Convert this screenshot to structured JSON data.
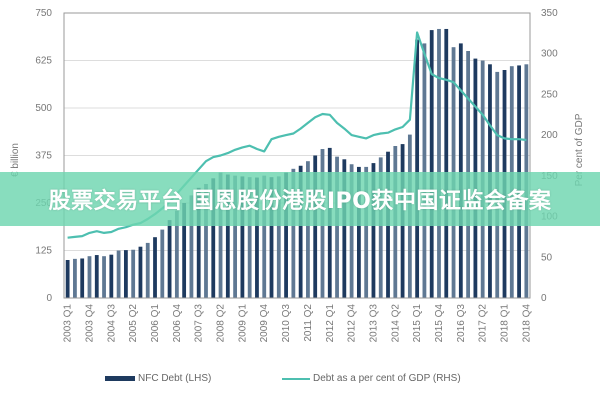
{
  "chart_data": {
    "type": "bar+line",
    "title": "",
    "ylabel_left": "€ billion",
    "ylabel_right": "Per cent of GDP",
    "ylim_left": [
      0,
      750
    ],
    "ylim_right": [
      0,
      350
    ],
    "yticks_left": [
      "0",
      "125",
      "250",
      "375",
      "500",
      "625",
      "750"
    ],
    "yticks_right": [
      "0",
      "50",
      "100",
      "150",
      "200",
      "250",
      "300",
      "350"
    ],
    "grid": true,
    "legend_placement": "bottom",
    "x_tick_labels": [
      "2003 Q1",
      "2003 Q4",
      "2004 Q3",
      "2005 Q2",
      "2006 Q1",
      "2006 Q4",
      "2007 Q3",
      "2008 Q2",
      "2009 Q1",
      "2009 Q4",
      "2010 Q3",
      "2011 Q2",
      "2012 Q1",
      "2012 Q4",
      "2013 Q3",
      "2014 Q2",
      "2015 Q1",
      "2015 Q4",
      "2016 Q3",
      "2017 Q2",
      "2018 Q1",
      "2018 Q4"
    ],
    "x_start": "2003 Q1",
    "x_end": "2018 Q4",
    "series": [
      {
        "name": "NFC Debt (LHS)",
        "type": "bar",
        "axis": "left",
        "color": "#1e3a5f",
        "values": [
          100,
          103,
          104,
          110,
          113,
          110,
          114,
          125,
          126,
          127,
          135,
          145,
          160,
          180,
          205,
          230,
          250,
          270,
          290,
          300,
          315,
          330,
          325,
          322,
          320,
          318,
          317,
          322,
          318,
          320,
          330,
          340,
          348,
          360,
          375,
          392,
          395,
          372,
          365,
          352,
          345,
          345,
          355,
          370,
          385,
          400,
          405,
          430,
          680,
          670,
          705,
          708,
          708,
          660,
          670,
          650,
          630,
          625,
          615,
          595,
          600,
          610,
          612,
          615
        ]
      },
      {
        "name": "Debt as a per cent of GDP (RHS)",
        "type": "line",
        "axis": "right",
        "color": "#4dbfb0",
        "values": [
          74,
          75,
          76,
          80,
          82,
          80,
          81,
          85,
          87,
          90,
          92,
          97,
          103,
          110,
          118,
          128,
          138,
          148,
          158,
          168,
          173,
          175,
          178,
          182,
          185,
          187,
          183,
          180,
          195,
          198,
          200,
          202,
          208,
          215,
          222,
          226,
          225,
          215,
          208,
          200,
          198,
          196,
          200,
          202,
          203,
          207,
          210,
          219,
          326,
          300,
          275,
          270,
          268,
          265,
          255,
          245,
          235,
          225,
          212,
          200,
          196,
          195,
          195,
          194
        ]
      }
    ]
  },
  "overlay": {
    "banner_text": "股票交易平台 国恩股份港股IPO获中国证监会备案"
  }
}
